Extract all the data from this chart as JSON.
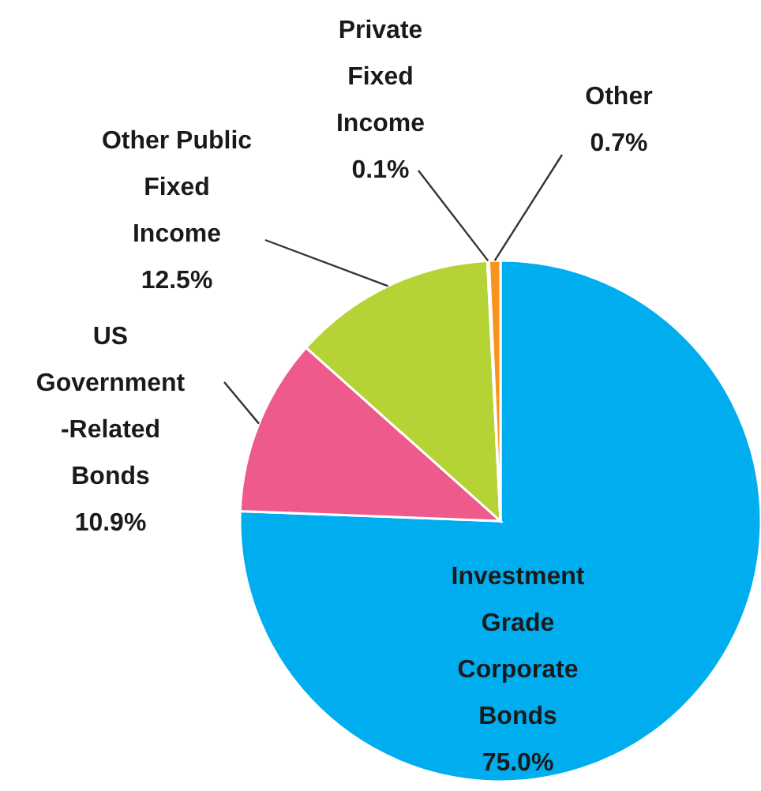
{
  "chart_data": {
    "type": "pie",
    "categories": [
      "Investment Grade Corporate Bonds",
      "US Government-Related Bonds",
      "Other Public Fixed Income",
      "Private Fixed Income",
      "Other"
    ],
    "values": [
      75.0,
      10.9,
      12.5,
      0.1,
      0.7
    ],
    "colors": [
      "#00aeef",
      "#ef5a8c",
      "#b5d334",
      "#d9d9d9",
      "#f7941d"
    ],
    "value_labels": [
      "75.0%",
      "10.9%",
      "12.5%",
      "0.1%",
      "0.7%"
    ],
    "legend": false
  }
}
